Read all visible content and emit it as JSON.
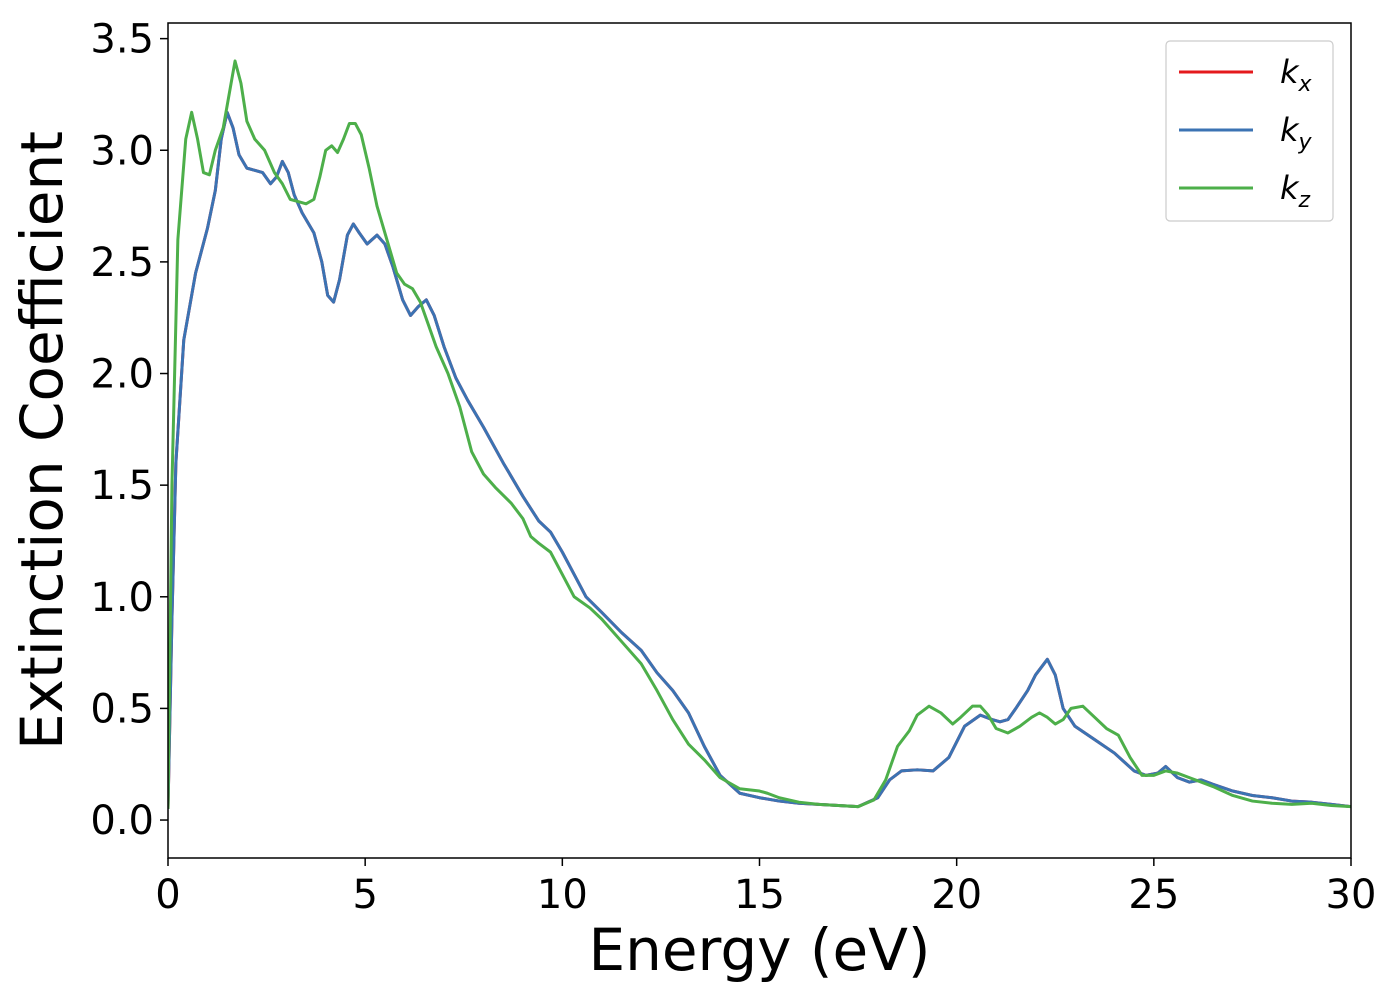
{
  "chart_data": {
    "type": "line",
    "xlabel": "Energy (eV)",
    "ylabel": "Extinction Coefficient",
    "xlim": [
      0,
      30
    ],
    "ylim": [
      -0.17,
      3.57
    ],
    "xticks": [
      0,
      5,
      10,
      15,
      20,
      25,
      30
    ],
    "xtick_labels": [
      "0",
      "5",
      "10",
      "15",
      "20",
      "25",
      "30"
    ],
    "yticks": [
      0.0,
      0.5,
      1.0,
      1.5,
      2.0,
      2.5,
      3.0,
      3.5
    ],
    "ytick_labels": [
      "0.0",
      "0.5",
      "1.0",
      "1.5",
      "2.0",
      "2.5",
      "3.0",
      "3.5"
    ],
    "grid": false,
    "legend_position": "top-right",
    "series": [
      {
        "name": "k_x",
        "label_main": "k",
        "label_sub": "x",
        "color": "#e41a1c",
        "points": [
          [
            0,
            0.05
          ],
          [
            0.1,
            0.9
          ],
          [
            0.2,
            1.6
          ],
          [
            0.4,
            2.15
          ],
          [
            0.7,
            2.45
          ],
          [
            1.0,
            2.65
          ],
          [
            1.2,
            2.82
          ],
          [
            1.35,
            3.05
          ],
          [
            1.5,
            3.17
          ],
          [
            1.65,
            3.1
          ],
          [
            1.8,
            2.98
          ],
          [
            2.0,
            2.92
          ],
          [
            2.2,
            2.91
          ],
          [
            2.4,
            2.9
          ],
          [
            2.6,
            2.85
          ],
          [
            2.75,
            2.88
          ],
          [
            2.9,
            2.95
          ],
          [
            3.05,
            2.9
          ],
          [
            3.2,
            2.8
          ],
          [
            3.4,
            2.72
          ],
          [
            3.7,
            2.63
          ],
          [
            3.9,
            2.5
          ],
          [
            4.05,
            2.35
          ],
          [
            4.2,
            2.32
          ],
          [
            4.35,
            2.42
          ],
          [
            4.55,
            2.62
          ],
          [
            4.7,
            2.67
          ],
          [
            4.85,
            2.63
          ],
          [
            5.05,
            2.58
          ],
          [
            5.3,
            2.62
          ],
          [
            5.5,
            2.58
          ],
          [
            5.7,
            2.48
          ],
          [
            5.95,
            2.33
          ],
          [
            6.15,
            2.26
          ],
          [
            6.35,
            2.3
          ],
          [
            6.55,
            2.33
          ],
          [
            6.75,
            2.26
          ],
          [
            7.0,
            2.12
          ],
          [
            7.3,
            1.98
          ],
          [
            7.6,
            1.88
          ],
          [
            8.0,
            1.76
          ],
          [
            8.5,
            1.6
          ],
          [
            9.0,
            1.45
          ],
          [
            9.4,
            1.34
          ],
          [
            9.7,
            1.29
          ],
          [
            10.0,
            1.2
          ],
          [
            10.3,
            1.1
          ],
          [
            10.6,
            1.0
          ],
          [
            11.0,
            0.93
          ],
          [
            11.5,
            0.84
          ],
          [
            12.0,
            0.76
          ],
          [
            12.4,
            0.66
          ],
          [
            12.8,
            0.58
          ],
          [
            13.2,
            0.48
          ],
          [
            13.6,
            0.33
          ],
          [
            14.0,
            0.2
          ],
          [
            14.5,
            0.12
          ],
          [
            15.0,
            0.1
          ],
          [
            15.5,
            0.085
          ],
          [
            16.0,
            0.075
          ],
          [
            16.5,
            0.07
          ],
          [
            17.0,
            0.065
          ],
          [
            17.5,
            0.06
          ],
          [
            18.0,
            0.1
          ],
          [
            18.3,
            0.18
          ],
          [
            18.6,
            0.22
          ],
          [
            19.0,
            0.225
          ],
          [
            19.4,
            0.22
          ],
          [
            19.8,
            0.28
          ],
          [
            20.2,
            0.42
          ],
          [
            20.6,
            0.47
          ],
          [
            20.9,
            0.45
          ],
          [
            21.1,
            0.44
          ],
          [
            21.3,
            0.45
          ],
          [
            21.5,
            0.5
          ],
          [
            21.8,
            0.58
          ],
          [
            22.0,
            0.65
          ],
          [
            22.3,
            0.72
          ],
          [
            22.5,
            0.65
          ],
          [
            22.7,
            0.5
          ],
          [
            23.0,
            0.42
          ],
          [
            23.5,
            0.36
          ],
          [
            24.0,
            0.3
          ],
          [
            24.5,
            0.22
          ],
          [
            24.8,
            0.2
          ],
          [
            25.1,
            0.21
          ],
          [
            25.3,
            0.24
          ],
          [
            25.6,
            0.19
          ],
          [
            25.9,
            0.17
          ],
          [
            26.2,
            0.18
          ],
          [
            26.5,
            0.16
          ],
          [
            27.0,
            0.13
          ],
          [
            27.5,
            0.11
          ],
          [
            28.0,
            0.1
          ],
          [
            28.5,
            0.085
          ],
          [
            29.0,
            0.08
          ],
          [
            29.5,
            0.07
          ],
          [
            30.0,
            0.06
          ]
        ]
      },
      {
        "name": "k_y",
        "label_main": "k",
        "label_sub": "y",
        "color": "#3b73b3",
        "points": [
          [
            0,
            0.05
          ],
          [
            0.1,
            0.9
          ],
          [
            0.2,
            1.6
          ],
          [
            0.4,
            2.15
          ],
          [
            0.7,
            2.45
          ],
          [
            1.0,
            2.65
          ],
          [
            1.2,
            2.82
          ],
          [
            1.35,
            3.05
          ],
          [
            1.5,
            3.17
          ],
          [
            1.65,
            3.1
          ],
          [
            1.8,
            2.98
          ],
          [
            2.0,
            2.92
          ],
          [
            2.2,
            2.91
          ],
          [
            2.4,
            2.9
          ],
          [
            2.6,
            2.85
          ],
          [
            2.75,
            2.88
          ],
          [
            2.9,
            2.95
          ],
          [
            3.05,
            2.9
          ],
          [
            3.2,
            2.8
          ],
          [
            3.4,
            2.72
          ],
          [
            3.7,
            2.63
          ],
          [
            3.9,
            2.5
          ],
          [
            4.05,
            2.35
          ],
          [
            4.2,
            2.32
          ],
          [
            4.35,
            2.42
          ],
          [
            4.55,
            2.62
          ],
          [
            4.7,
            2.67
          ],
          [
            4.85,
            2.63
          ],
          [
            5.05,
            2.58
          ],
          [
            5.3,
            2.62
          ],
          [
            5.5,
            2.58
          ],
          [
            5.7,
            2.48
          ],
          [
            5.95,
            2.33
          ],
          [
            6.15,
            2.26
          ],
          [
            6.35,
            2.3
          ],
          [
            6.55,
            2.33
          ],
          [
            6.75,
            2.26
          ],
          [
            7.0,
            2.12
          ],
          [
            7.3,
            1.98
          ],
          [
            7.6,
            1.88
          ],
          [
            8.0,
            1.76
          ],
          [
            8.5,
            1.6
          ],
          [
            9.0,
            1.45
          ],
          [
            9.4,
            1.34
          ],
          [
            9.7,
            1.29
          ],
          [
            10.0,
            1.2
          ],
          [
            10.3,
            1.1
          ],
          [
            10.6,
            1.0
          ],
          [
            11.0,
            0.93
          ],
          [
            11.5,
            0.84
          ],
          [
            12.0,
            0.76
          ],
          [
            12.4,
            0.66
          ],
          [
            12.8,
            0.58
          ],
          [
            13.2,
            0.48
          ],
          [
            13.6,
            0.33
          ],
          [
            14.0,
            0.2
          ],
          [
            14.5,
            0.12
          ],
          [
            15.0,
            0.1
          ],
          [
            15.5,
            0.085
          ],
          [
            16.0,
            0.075
          ],
          [
            16.5,
            0.07
          ],
          [
            17.0,
            0.065
          ],
          [
            17.5,
            0.06
          ],
          [
            18.0,
            0.1
          ],
          [
            18.3,
            0.18
          ],
          [
            18.6,
            0.22
          ],
          [
            19.0,
            0.225
          ],
          [
            19.4,
            0.22
          ],
          [
            19.8,
            0.28
          ],
          [
            20.2,
            0.42
          ],
          [
            20.6,
            0.47
          ],
          [
            20.9,
            0.45
          ],
          [
            21.1,
            0.44
          ],
          [
            21.3,
            0.45
          ],
          [
            21.5,
            0.5
          ],
          [
            21.8,
            0.58
          ],
          [
            22.0,
            0.65
          ],
          [
            22.3,
            0.72
          ],
          [
            22.5,
            0.65
          ],
          [
            22.7,
            0.5
          ],
          [
            23.0,
            0.42
          ],
          [
            23.5,
            0.36
          ],
          [
            24.0,
            0.3
          ],
          [
            24.5,
            0.22
          ],
          [
            24.8,
            0.2
          ],
          [
            25.1,
            0.21
          ],
          [
            25.3,
            0.24
          ],
          [
            25.6,
            0.19
          ],
          [
            25.9,
            0.17
          ],
          [
            26.2,
            0.18
          ],
          [
            26.5,
            0.16
          ],
          [
            27.0,
            0.13
          ],
          [
            27.5,
            0.11
          ],
          [
            28.0,
            0.1
          ],
          [
            28.5,
            0.085
          ],
          [
            29.0,
            0.08
          ],
          [
            29.5,
            0.07
          ],
          [
            30.0,
            0.06
          ]
        ]
      },
      {
        "name": "k_z",
        "label_main": "k",
        "label_sub": "z",
        "color": "#4daf4a",
        "points": [
          [
            0,
            0.05
          ],
          [
            0.1,
            1.5
          ],
          [
            0.25,
            2.6
          ],
          [
            0.45,
            3.05
          ],
          [
            0.6,
            3.17
          ],
          [
            0.75,
            3.05
          ],
          [
            0.9,
            2.9
          ],
          [
            1.05,
            2.89
          ],
          [
            1.2,
            3.0
          ],
          [
            1.4,
            3.1
          ],
          [
            1.55,
            3.25
          ],
          [
            1.7,
            3.4
          ],
          [
            1.85,
            3.3
          ],
          [
            2.0,
            3.13
          ],
          [
            2.2,
            3.05
          ],
          [
            2.45,
            3.0
          ],
          [
            2.7,
            2.9
          ],
          [
            2.9,
            2.85
          ],
          [
            3.1,
            2.78
          ],
          [
            3.3,
            2.77
          ],
          [
            3.5,
            2.76
          ],
          [
            3.7,
            2.78
          ],
          [
            3.85,
            2.88
          ],
          [
            4.0,
            3.0
          ],
          [
            4.15,
            3.02
          ],
          [
            4.3,
            2.99
          ],
          [
            4.45,
            3.05
          ],
          [
            4.6,
            3.12
          ],
          [
            4.75,
            3.12
          ],
          [
            4.9,
            3.07
          ],
          [
            5.1,
            2.92
          ],
          [
            5.3,
            2.75
          ],
          [
            5.55,
            2.6
          ],
          [
            5.8,
            2.45
          ],
          [
            6.0,
            2.4
          ],
          [
            6.2,
            2.38
          ],
          [
            6.4,
            2.32
          ],
          [
            6.6,
            2.22
          ],
          [
            6.8,
            2.12
          ],
          [
            7.1,
            2.0
          ],
          [
            7.4,
            1.85
          ],
          [
            7.7,
            1.65
          ],
          [
            8.0,
            1.55
          ],
          [
            8.3,
            1.49
          ],
          [
            8.7,
            1.42
          ],
          [
            9.0,
            1.35
          ],
          [
            9.2,
            1.27
          ],
          [
            9.4,
            1.24
          ],
          [
            9.7,
            1.2
          ],
          [
            10.0,
            1.1
          ],
          [
            10.3,
            1.0
          ],
          [
            10.7,
            0.95
          ],
          [
            11.0,
            0.9
          ],
          [
            11.5,
            0.8
          ],
          [
            12.0,
            0.7
          ],
          [
            12.4,
            0.58
          ],
          [
            12.8,
            0.45
          ],
          [
            13.2,
            0.34
          ],
          [
            13.6,
            0.27
          ],
          [
            14.0,
            0.19
          ],
          [
            14.5,
            0.14
          ],
          [
            15.0,
            0.13
          ],
          [
            15.2,
            0.12
          ],
          [
            15.5,
            0.1
          ],
          [
            16.0,
            0.08
          ],
          [
            16.5,
            0.07
          ],
          [
            17.0,
            0.065
          ],
          [
            17.5,
            0.06
          ],
          [
            17.9,
            0.09
          ],
          [
            18.2,
            0.18
          ],
          [
            18.5,
            0.33
          ],
          [
            18.8,
            0.4
          ],
          [
            19.0,
            0.47
          ],
          [
            19.3,
            0.51
          ],
          [
            19.6,
            0.48
          ],
          [
            19.9,
            0.43
          ],
          [
            20.1,
            0.46
          ],
          [
            20.4,
            0.51
          ],
          [
            20.6,
            0.51
          ],
          [
            20.8,
            0.47
          ],
          [
            21.0,
            0.41
          ],
          [
            21.3,
            0.39
          ],
          [
            21.6,
            0.42
          ],
          [
            21.9,
            0.46
          ],
          [
            22.1,
            0.48
          ],
          [
            22.3,
            0.46
          ],
          [
            22.5,
            0.43
          ],
          [
            22.7,
            0.45
          ],
          [
            22.9,
            0.5
          ],
          [
            23.2,
            0.51
          ],
          [
            23.5,
            0.46
          ],
          [
            23.8,
            0.41
          ],
          [
            24.1,
            0.38
          ],
          [
            24.4,
            0.28
          ],
          [
            24.7,
            0.2
          ],
          [
            25.0,
            0.2
          ],
          [
            25.3,
            0.22
          ],
          [
            25.6,
            0.21
          ],
          [
            25.9,
            0.19
          ],
          [
            26.2,
            0.17
          ],
          [
            26.5,
            0.15
          ],
          [
            27.0,
            0.11
          ],
          [
            27.5,
            0.085
          ],
          [
            28.0,
            0.075
          ],
          [
            28.5,
            0.07
          ],
          [
            29.0,
            0.075
          ],
          [
            29.5,
            0.065
          ],
          [
            30.0,
            0.06
          ]
        ]
      }
    ]
  }
}
